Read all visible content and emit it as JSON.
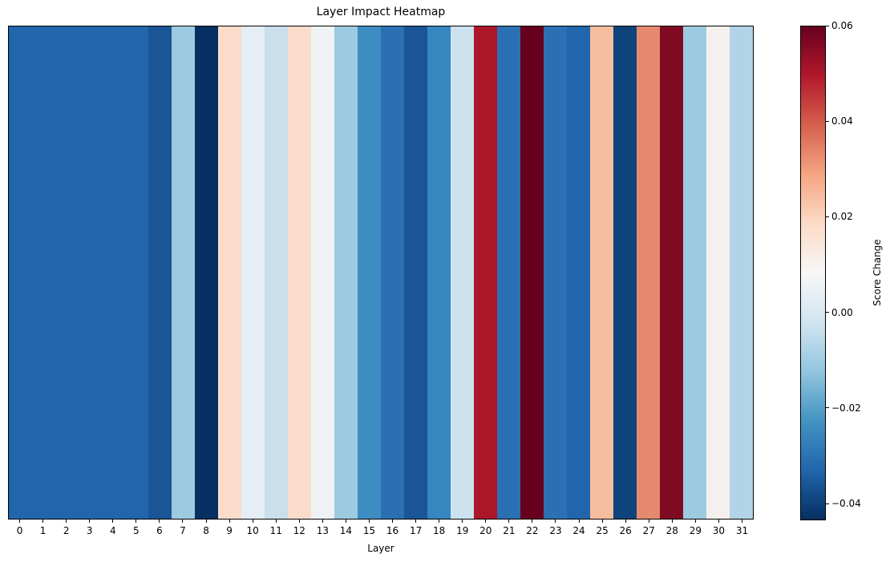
{
  "chart_data": {
    "type": "heatmap",
    "title": "Layer Impact Heatmap",
    "xlabel": "Layer",
    "ylabel": "",
    "colormap": "RdBu_r",
    "colorbar_label": "Score Change",
    "vmin": -0.0435,
    "vmax": 0.06,
    "colorbar_ticks": [
      0.06,
      0.04,
      0.02,
      0.0,
      -0.02,
      -0.04
    ],
    "colorbar_tick_labels": [
      "0.06",
      "0.04",
      "0.02",
      "0.00",
      "−0.02",
      "−0.04"
    ],
    "categories": [
      "0",
      "1",
      "2",
      "3",
      "4",
      "5",
      "6",
      "7",
      "8",
      "9",
      "10",
      "11",
      "12",
      "13",
      "14",
      "15",
      "16",
      "17",
      "18",
      "19",
      "20",
      "21",
      "22",
      "23",
      "24",
      "25",
      "26",
      "27",
      "28",
      "29",
      "30",
      "31"
    ],
    "values": [
      -0.033,
      -0.033,
      -0.033,
      -0.033,
      -0.033,
      -0.033,
      -0.037,
      -0.009,
      -0.0435,
      0.017,
      0.005,
      -0.002,
      0.017,
      0.007,
      -0.009,
      -0.026,
      -0.031,
      -0.037,
      -0.028,
      -0.002,
      0.047,
      -0.031,
      0.06,
      -0.031,
      -0.033,
      0.023,
      -0.04,
      0.032,
      0.056,
      -0.009,
      0.01,
      -0.005
    ],
    "cell_colors": [
      "#2166ac",
      "#2166ac",
      "#2166ac",
      "#2166ac",
      "#2166ac",
      "#2166ac",
      "#1a5597",
      "#9ecae1",
      "#053061",
      "#fbdccb",
      "#e4eef4",
      "#c9e0ec",
      "#fbdccb",
      "#eef2f5",
      "#9ecae1",
      "#3d8dc3",
      "#2c70b4",
      "#1a5597",
      "#3686c0",
      "#cce2ee",
      "#ae1729",
      "#2c70b4",
      "#67001f",
      "#2c70b4",
      "#2166ac",
      "#f6bea0",
      "#0f437c",
      "#e58a6f",
      "#7f0a22",
      "#9ecae1",
      "#f5f0ed",
      "#b3d4e7"
    ],
    "grid": false,
    "legend": "colorbar-right"
  }
}
